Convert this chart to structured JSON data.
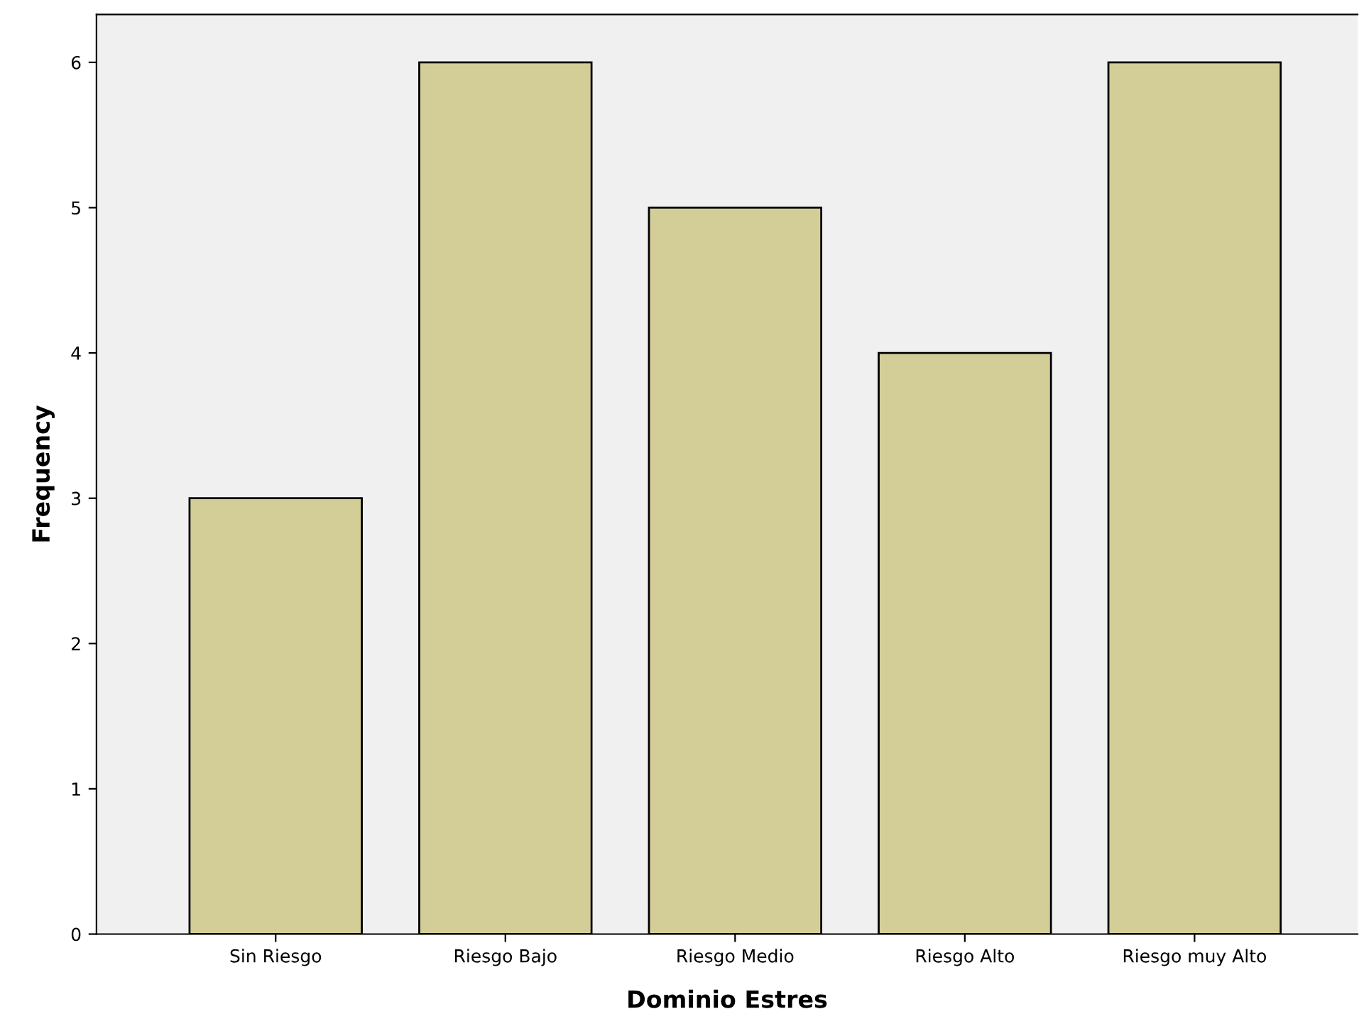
{
  "chart_data": {
    "type": "bar",
    "xlabel": "Dominio Estres",
    "ylabel": "Frequency",
    "categories": [
      "Sin Riesgo",
      "Riesgo Bajo",
      "Riesgo Medio",
      "Riesgo Alto",
      "Riesgo muy Alto"
    ],
    "values": [
      3,
      6,
      5,
      4,
      6
    ],
    "color": "#d3ce97",
    "ylim": [
      0,
      6.33
    ],
    "yticks": [
      0,
      1,
      2,
      3,
      4,
      5,
      6
    ],
    "grid": false,
    "legend": false
  }
}
